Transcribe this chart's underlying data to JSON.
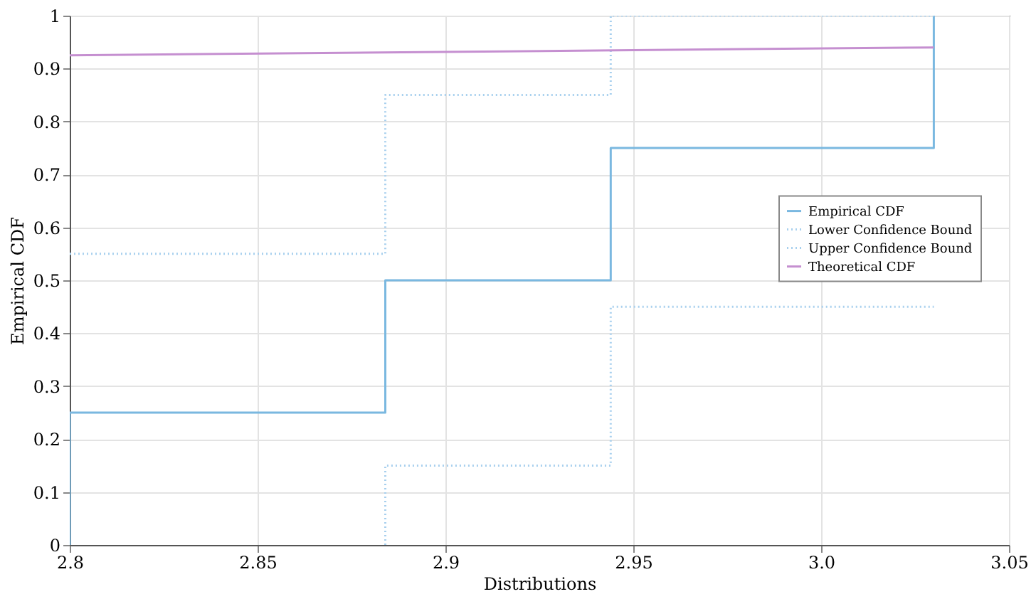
{
  "chart_data": {
    "type": "step",
    "xlabel": "Distributions",
    "ylabel": "Empirical CDF",
    "xlim": [
      2.8,
      3.05
    ],
    "xticks": [
      2.8,
      2.85,
      2.9,
      2.95,
      {
        "value": 3,
        "label": "3.0"
      },
      3.05
    ],
    "ylim": [
      0,
      1
    ],
    "yticks": [
      0,
      0.1,
      0.2,
      0.3,
      0.4,
      0.5,
      0.6,
      0.7,
      0.8,
      0.9,
      1
    ],
    "grid": true,
    "legend": "right",
    "series": [
      {
        "name": "Empirical CDF",
        "color": "#7ab8e0",
        "line_style": "solid",
        "x": [
          2.8,
          2.8,
          2.884,
          2.944,
          3.03
        ],
        "values": [
          0,
          0.25,
          0.5,
          0.75,
          1
        ]
      },
      {
        "name": "Lower Confidence Bound",
        "color": "#a8d0ee",
        "line_style": "dotted",
        "x": [
          2.884,
          2.884,
          2.944,
          3.03
        ],
        "values": [
          0,
          0.15,
          0.45,
          0.45
        ]
      },
      {
        "name": "Upper Confidence Bound",
        "color": "#a8d0ee",
        "line_style": "dotted",
        "x": [
          2.8,
          2.884,
          2.944,
          3.03
        ],
        "values": [
          0.55,
          0.85,
          1,
          1
        ]
      },
      {
        "name": "Theoretical CDF",
        "type": "line",
        "color": "#c58fd0",
        "line_style": "solid",
        "x": [
          2.8,
          3.03
        ],
        "values": [
          0.925,
          0.94
        ]
      }
    ]
  }
}
